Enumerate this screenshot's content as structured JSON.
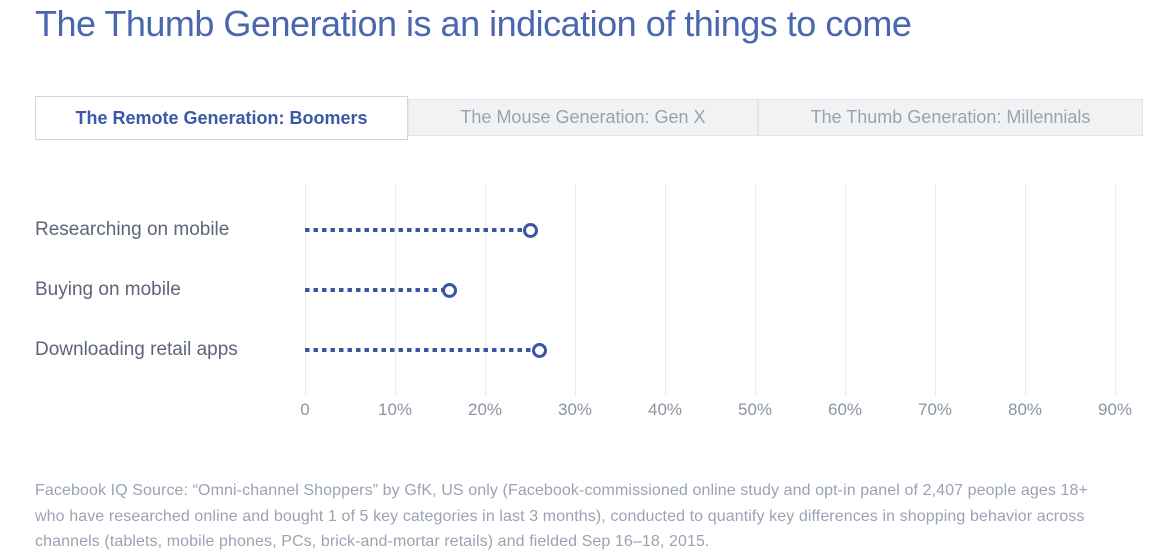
{
  "title": "The Thumb Generation is an indication of things to come",
  "tabs": [
    {
      "label": "The Remote Generation: Boomers",
      "active": true
    },
    {
      "label": "The Mouse Generation: Gen X",
      "active": false
    },
    {
      "label": "The Thumb Generation: Millennials",
      "active": false
    }
  ],
  "chart_data": {
    "type": "lollipop",
    "categories": [
      "Researching on mobile",
      "Buying on mobile",
      "Downloading retail apps"
    ],
    "values": [
      25,
      16,
      26
    ],
    "unit": "%",
    "x_ticks": [
      "0",
      "10%",
      "20%",
      "30%",
      "40%",
      "50%",
      "60%",
      "70%",
      "80%",
      "90%"
    ],
    "x_tick_values": [
      0,
      10,
      20,
      30,
      40,
      50,
      60,
      70,
      80,
      90
    ],
    "xlim": [
      0,
      90
    ],
    "grid": "vertical",
    "legend": "none",
    "accent_color": "#3a55a4"
  },
  "footer": "Facebook IQ Source: “Omni-channel Shoppers” by GfK, US only (Facebook-commissioned online study and opt-in panel of 2,407 people ages 18+ who have researched online and bought 1 of 5 key categories in last 3 months), conducted to quantify key differences in shopping behavior across channels (tablets, mobile phones, PCs, brick-and-mortar retails) and fielded Sep 16–18, 2015."
}
